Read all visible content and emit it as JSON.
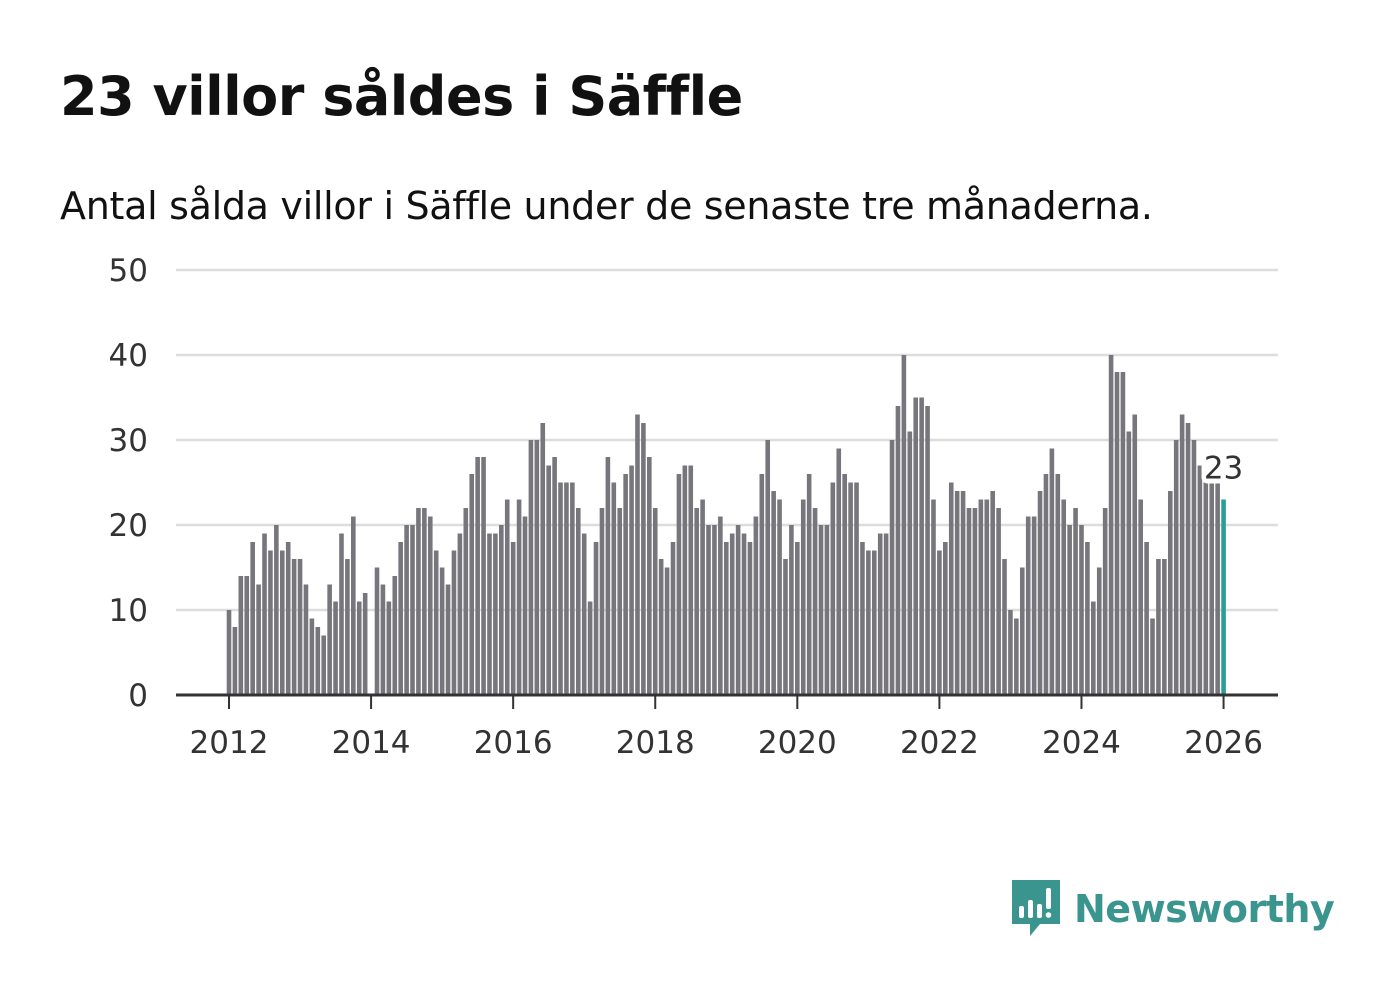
{
  "title": "23 villor såldes i Säffle",
  "subtitle": "Antal sålda villor i Säffle under de senaste tre månaderna.",
  "brand": {
    "name": "Newsworthy",
    "color": "#3a958e",
    "icon": "newsworthy-logo-icon"
  },
  "colors": {
    "bar": "#77767c",
    "highlight": "#2a9d97",
    "grid": "#dddddd",
    "axis": "#333333"
  },
  "chart_data": {
    "type": "bar",
    "title": "23 villor såldes i Säffle",
    "xlabel": "",
    "ylabel": "",
    "ylim": [
      0,
      50
    ],
    "yticks": [
      "0",
      "10",
      "20",
      "30",
      "40",
      "50"
    ],
    "xticks": [
      "2012",
      "2014",
      "2016",
      "2018",
      "2020",
      "2022",
      "2024",
      "2026"
    ],
    "x_start": "2012-01",
    "frequency": "monthly",
    "values": [
      10,
      8,
      14,
      14,
      18,
      13,
      19,
      17,
      20,
      17,
      18,
      16,
      16,
      13,
      9,
      8,
      7,
      13,
      11,
      19,
      16,
      21,
      11,
      12,
      0,
      15,
      13,
      11,
      14,
      18,
      20,
      20,
      22,
      22,
      21,
      17,
      15,
      13,
      17,
      19,
      22,
      26,
      28,
      28,
      19,
      19,
      20,
      23,
      18,
      23,
      21,
      30,
      30,
      32,
      27,
      28,
      25,
      25,
      25,
      22,
      19,
      11,
      18,
      22,
      28,
      25,
      22,
      26,
      27,
      33,
      32,
      28,
      22,
      16,
      15,
      18,
      26,
      27,
      27,
      22,
      23,
      20,
      20,
      21,
      18,
      19,
      20,
      19,
      18,
      21,
      26,
      30,
      24,
      23,
      16,
      20,
      18,
      23,
      26,
      22,
      20,
      20,
      25,
      29,
      26,
      25,
      25,
      18,
      17,
      17,
      19,
      19,
      30,
      34,
      40,
      31,
      35,
      35,
      34,
      23,
      17,
      18,
      25,
      24,
      24,
      22,
      22,
      23,
      23,
      24,
      22,
      16,
      10,
      9,
      15,
      21,
      21,
      24,
      26,
      29,
      26,
      23,
      20,
      22,
      20,
      18,
      11,
      15,
      22,
      40,
      38,
      38,
      31,
      33,
      23,
      18,
      9,
      16,
      16,
      24,
      30,
      33,
      32,
      30,
      27,
      25,
      25,
      25,
      23
    ],
    "highlight": {
      "index": 168,
      "label": "23"
    }
  }
}
